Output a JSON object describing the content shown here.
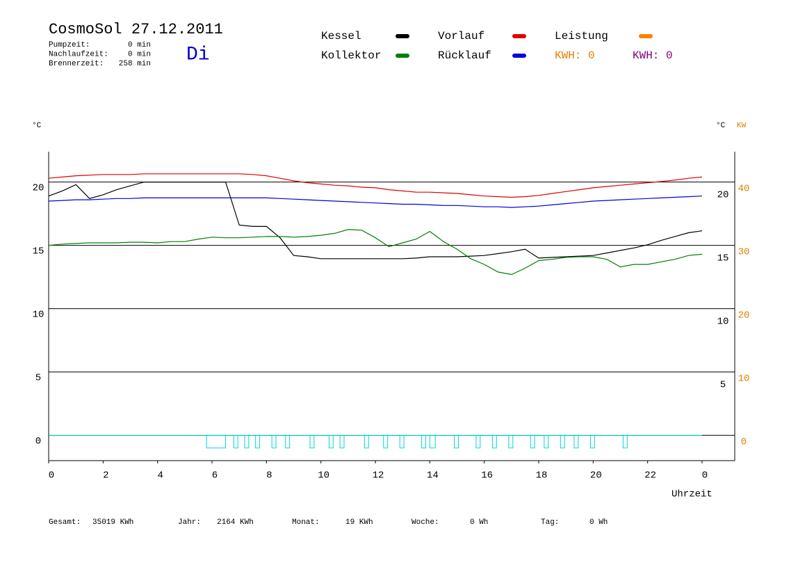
{
  "header": {
    "title": "CosmoSol 27.12.2011",
    "weekday": "Di",
    "stats": [
      {
        "label": "Pumpzeit:",
        "value": "0 min"
      },
      {
        "label": "Nachlaufzeit:",
        "value": "0 min"
      },
      {
        "label": "Brennerzeit:",
        "value": "258 min"
      }
    ]
  },
  "footer": [
    {
      "label": "Gesamt:",
      "value": "35019 KWh"
    },
    {
      "label": "Jahr:",
      "value": "2164 KWh"
    },
    {
      "label": "Monat:",
      "value": "19 KWh"
    },
    {
      "label": "Woche:",
      "value": "0 Wh"
    },
    {
      "label": "Tag:",
      "value": "0 Wh"
    }
  ],
  "chart_data": {
    "type": "line",
    "y_label": "°C",
    "y3_label": "°C",
    "y2_label": "KW",
    "x_label": "Uhrzeit",
    "annotations": [
      {
        "text": "KWH: 0",
        "color": "#e08000"
      },
      {
        "text": "KWH: 0",
        "color": "#800080"
      }
    ],
    "xlim": [
      0,
      25.2
    ],
    "xticks": [
      0,
      2,
      4,
      6,
      8,
      10,
      12,
      14,
      16,
      18,
      20,
      22,
      {
        "value": 24,
        "label": "0"
      }
    ],
    "ylim": [
      -2,
      22.4
    ],
    "yticks": [
      0,
      5,
      10,
      15,
      20
    ],
    "y3lim": [
      -1,
      23.4
    ],
    "y3ticks": [
      5,
      10,
      15,
      20
    ],
    "y2lim": [
      -4,
      44.8
    ],
    "y2ticks": [
      0,
      10,
      20,
      30,
      40
    ],
    "y2color": "#e08000",
    "grid": true,
    "x": [
      0,
      0.5,
      1,
      1.5,
      2,
      2.5,
      3,
      3.5,
      4,
      4.5,
      5,
      5.5,
      6,
      6.5,
      7,
      7.5,
      8,
      8.5,
      9,
      9.5,
      10,
      10.5,
      11,
      11.5,
      12,
      12.5,
      13,
      13.5,
      14,
      14.5,
      15,
      15.5,
      16,
      16.5,
      17,
      17.5,
      18,
      18.5,
      19,
      19.5,
      20,
      20.5,
      21,
      21.5,
      22,
      22.5,
      23,
      23.5,
      24
    ],
    "series": [
      {
        "name": "Kessel",
        "color": "#000000",
        "values": [
          18.9,
          19.3,
          19.8,
          18.7,
          19.0,
          19.4,
          19.7,
          20.0,
          20.0,
          20.0,
          20.0,
          20.0,
          20.0,
          20.0,
          16.6,
          16.5,
          16.5,
          15.6,
          14.2,
          14.1,
          13.95,
          13.95,
          13.95,
          13.95,
          13.95,
          13.95,
          13.95,
          14.0,
          14.1,
          14.1,
          14.1,
          14.15,
          14.2,
          14.35,
          14.5,
          14.7,
          14.0,
          14.05,
          14.1,
          14.15,
          14.2,
          14.4,
          14.6,
          14.8,
          15.05,
          15.4,
          15.7,
          16.0,
          16.15
        ]
      },
      {
        "name": "Kollektor",
        "color": "#008000",
        "values": [
          15.0,
          15.1,
          15.15,
          15.2,
          15.2,
          15.2,
          15.25,
          15.25,
          15.2,
          15.3,
          15.3,
          15.5,
          15.65,
          15.6,
          15.6,
          15.65,
          15.7,
          15.7,
          15.65,
          15.7,
          15.8,
          15.95,
          16.25,
          16.2,
          15.6,
          14.9,
          15.2,
          15.5,
          16.1,
          15.3,
          14.7,
          13.95,
          13.5,
          12.9,
          12.7,
          13.2,
          13.8,
          13.9,
          14.05,
          14.1,
          14.1,
          13.9,
          13.3,
          13.5,
          13.5,
          13.7,
          13.9,
          14.2,
          14.3
        ]
      },
      {
        "name": "Vorlauf",
        "color": "#e00000",
        "values": [
          20.3,
          20.4,
          20.5,
          20.55,
          20.6,
          20.6,
          20.6,
          20.65,
          20.65,
          20.65,
          20.65,
          20.65,
          20.65,
          20.65,
          20.65,
          20.6,
          20.5,
          20.3,
          20.1,
          19.95,
          19.85,
          19.75,
          19.7,
          19.6,
          19.55,
          19.4,
          19.3,
          19.2,
          19.2,
          19.15,
          19.1,
          19.0,
          18.9,
          18.85,
          18.8,
          18.85,
          18.95,
          19.1,
          19.25,
          19.4,
          19.55,
          19.65,
          19.75,
          19.85,
          19.95,
          20.05,
          20.15,
          20.3,
          20.4
        ]
      },
      {
        "name": "Rücklauf",
        "color": "#0000e0",
        "values": [
          18.5,
          18.55,
          18.6,
          18.6,
          18.65,
          18.7,
          18.7,
          18.75,
          18.75,
          18.75,
          18.75,
          18.75,
          18.75,
          18.75,
          18.75,
          18.75,
          18.75,
          18.7,
          18.65,
          18.6,
          18.55,
          18.5,
          18.45,
          18.4,
          18.35,
          18.3,
          18.25,
          18.25,
          18.2,
          18.15,
          18.15,
          18.1,
          18.05,
          18.05,
          18.0,
          18.05,
          18.1,
          18.2,
          18.3,
          18.4,
          18.5,
          18.55,
          18.6,
          18.65,
          18.7,
          18.75,
          18.8,
          18.85,
          18.9
        ]
      },
      {
        "name": "Leistung",
        "color": "#ff8000",
        "axis": "y2",
        "values": [
          null,
          null,
          null,
          null,
          null,
          null,
          null,
          null,
          null,
          null,
          null,
          null,
          null,
          null,
          null,
          null,
          null,
          null,
          null,
          null,
          null,
          null,
          null,
          null,
          null,
          null,
          null,
          null,
          null,
          null,
          null,
          null,
          null,
          null,
          null,
          null,
          null,
          null,
          null,
          null,
          null,
          null,
          null,
          null,
          null,
          null,
          null,
          null,
          null
        ]
      }
    ],
    "pump": {
      "color": "#00d8d8",
      "x": [
        5.8,
        6.8,
        7.2,
        7.6,
        8.2,
        8.7,
        9.6,
        10.3,
        10.7,
        11.6,
        12.3,
        12.9,
        13.7,
        14.0,
        14.9,
        15.7,
        16.3,
        16.9,
        17.7,
        18.2,
        18.8,
        19.3,
        19.9,
        21.1
      ],
      "x_end": [
        6.5,
        6.95,
        7.35,
        7.75,
        8.35,
        8.85,
        9.75,
        10.45,
        10.85,
        11.75,
        12.45,
        13.05,
        13.85,
        14.2,
        15.05,
        15.85,
        16.45,
        17.05,
        17.85,
        18.35,
        18.95,
        19.45,
        20.05,
        21.25
      ],
      "values": [
        -1,
        -1,
        -1,
        -1,
        -1,
        -1,
        -1,
        -1,
        -1,
        -1,
        -1,
        -1,
        -1,
        -1,
        -1,
        -1,
        -1,
        -1,
        -1,
        -1,
        -1,
        -1,
        -1,
        -1
      ]
    }
  }
}
